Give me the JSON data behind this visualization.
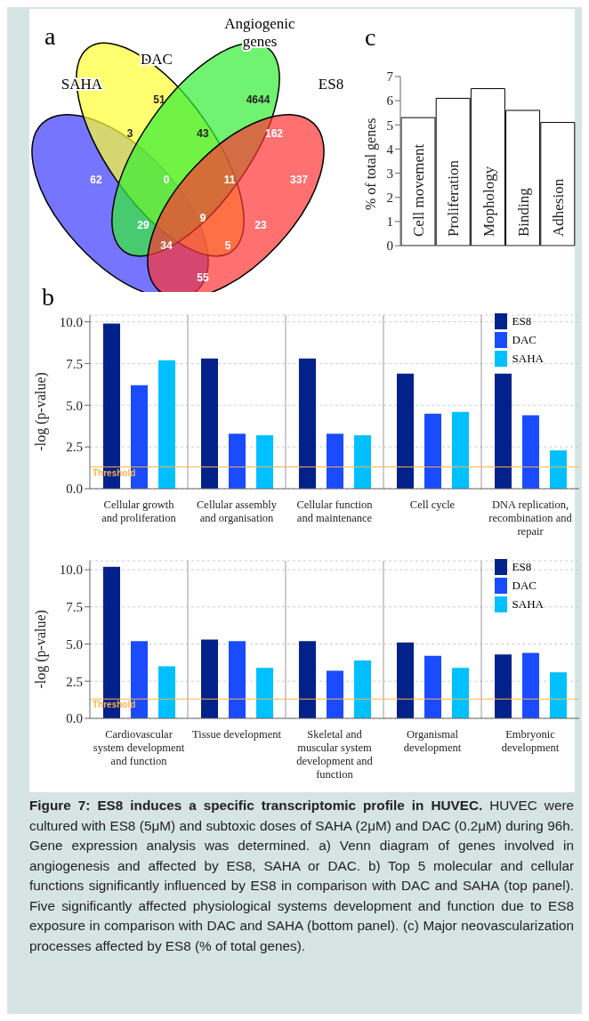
{
  "chart_data": [
    {
      "type": "other",
      "categories": [
        null,
        null,
        null,
        null,
        null,
        null,
        null,
        null,
        null,
        null,
        null,
        null,
        null,
        null,
        null
      ],
      "values": [
        51,
        4644,
        3,
        43,
        162,
        62,
        0,
        11,
        337,
        9,
        29,
        23,
        34,
        5,
        55
      ],
      "data_labels": true,
      "annotations": [
        "a",
        "SAHA",
        "DAC",
        "Angiogenic genes",
        "ES8"
      ]
    },
    {
      "type": "bar",
      "ylabel": "% of total genes",
      "categories": [
        "Cell movement",
        "Proliferation",
        "Mophology",
        "Binding",
        "Adhesion"
      ],
      "values": [
        5.3,
        6.1,
        6.5,
        5.6,
        5.1
      ],
      "color": "#ffffff",
      "ylim": [
        0,
        7
      ],
      "yticks": [
        0,
        1,
        2,
        3,
        4,
        5,
        6,
        7
      ],
      "annotations": [
        "c"
      ]
    },
    {
      "type": "bar",
      "ylabel": "-log (p-value)",
      "categories": [
        "Cellular growth and proliferation",
        "Cellular assembly and organisation",
        "Cellular function and maintenance",
        "Cell cycle",
        "DNA replication, recombination and repair"
      ],
      "series": [
        {
          "name": "ES8",
          "color": "#02218a",
          "values": [
            9.9,
            7.8,
            7.8,
            6.9,
            6.9
          ]
        },
        {
          "name": "DAC",
          "color": "#1a4bff",
          "values": [
            6.2,
            3.3,
            3.3,
            4.5,
            4.4
          ]
        },
        {
          "name": "SAHA",
          "color": "#00c0ff",
          "values": [
            7.7,
            3.2,
            3.2,
            4.6,
            2.3
          ]
        }
      ],
      "ylim": [
        0,
        10.4
      ],
      "yticks": [
        {
          "value": 0,
          "label": "0.0"
        },
        2.5,
        {
          "value": 5,
          "label": "5.0"
        },
        7.5,
        {
          "value": 10,
          "label": "10.0"
        }
      ],
      "grid": true,
      "legend": "top right",
      "ref_lines": [
        {
          "axis": "y",
          "value": 1.3,
          "label": "Threshold",
          "color": "#ffb347"
        }
      ],
      "annotations": [
        "b"
      ]
    },
    {
      "type": "bar",
      "ylabel": "-log (p-value)",
      "categories": [
        "Cardiovascular system development and function",
        "Tissue development",
        "Skeletal and muscular system development and function",
        "Organismal development",
        "Embryonic development"
      ],
      "series": [
        {
          "name": "ES8",
          "color": "#02218a",
          "values": [
            10.2,
            5.3,
            5.2,
            5.1,
            4.3
          ]
        },
        {
          "name": "DAC",
          "color": "#1a4bff",
          "values": [
            5.2,
            5.2,
            3.2,
            4.2,
            4.4
          ]
        },
        {
          "name": "SAHA",
          "color": "#00c0ff",
          "values": [
            3.5,
            3.4,
            3.9,
            3.4,
            3.1
          ]
        }
      ],
      "ylim": [
        0,
        10.6
      ],
      "yticks": [
        {
          "value": 0,
          "label": "0.0"
        },
        2.5,
        {
          "value": 5,
          "label": "5.0"
        },
        7.5,
        {
          "value": 10,
          "label": "10.0"
        }
      ],
      "grid": true,
      "legend": "top right",
      "ref_lines": [
        {
          "axis": "y",
          "value": 1.3,
          "label": "Threshold",
          "color": "#ffb347"
        }
      ]
    },
    {
      "type": "other",
      "title": "Figure 7: ES8 induces a specific transcriptomic profile in HUVEC.",
      "annotations": [
        "HUVEC were cultured with ES8 (5μM) and subtoxic doses of SAHA (2μM) and DAC (0.2μM) during 96h. Gene expression analysis was determined. a) Venn diagram of genes involved in angiogenesis and affected by ES8, SAHA or DAC. b) Top 5 molecular and cellular functions significantly influenced by ES8 in comparison with DAC and SAHA (top panel). Five significantly affected physiological systems development and function due to ES8 exposure in comparison with DAC and SAHA (bottom panel). (c) Major neovascularization processes affected by ES8 (% of total genes)."
      ]
    }
  ]
}
